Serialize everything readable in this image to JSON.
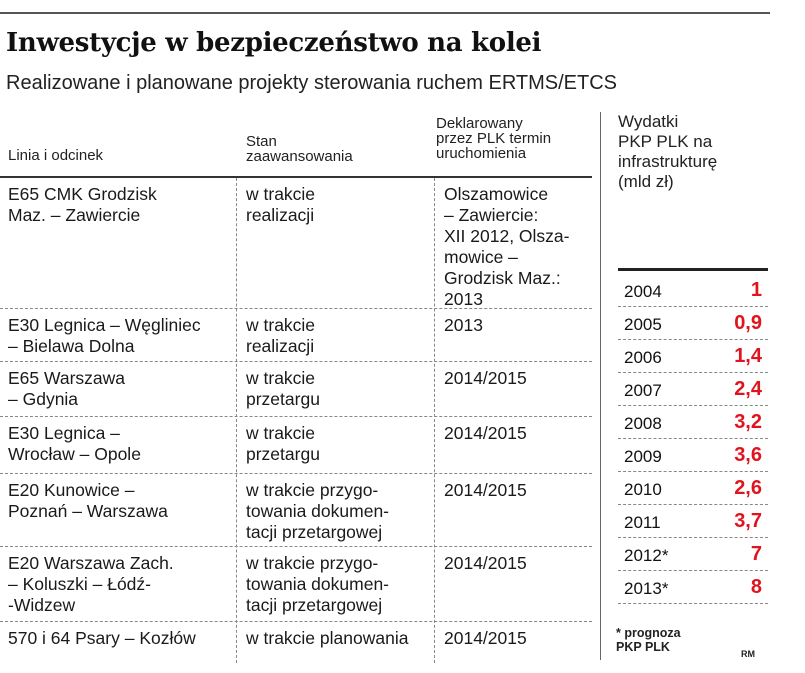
{
  "title": "Inwestycje w bezpieczeństwo na kolei",
  "subtitle": "Realizowane i planowane projekty sterowania ruchem ERTMS/ETCS",
  "table": {
    "headers": {
      "col1": "Linia i odcinek",
      "col2": "Stan\nzaawansowania",
      "col3": "Deklarowany\nprzez PLK termin\nuruchomienia"
    },
    "rows": [
      {
        "line": "E65 CMK Grodzisk\nMaz. – Zawiercie",
        "status": "w trakcie\nrealizacji",
        "date": "Olszamowice\n– Zawiercie:\nXII 2012, Olsza-\nmowice –\nGrodzisk Maz.:\n2013"
      },
      {
        "line": "E30 Legnica – Węgliniec\n– Bielawa Dolna",
        "status": "w trakcie\nrealizacji",
        "date": "2013"
      },
      {
        "line": "E65 Warszawa\n– Gdynia",
        "status": "w trakcie\nprzetargu",
        "date": "2014/2015"
      },
      {
        "line": "E30 Legnica –\nWrocław – Opole",
        "status": "w trakcie\nprzetargu",
        "date": "2014/2015"
      },
      {
        "line": "E20 Kunowice –\nPoznań – Warszawa",
        "status": "w trakcie przygo-\ntowania dokumen-\ntacji przetargowej",
        "date": "2014/2015"
      },
      {
        "line": "E20 Warszawa Zach.\n– Koluszki – Łódź-\n-Widzew",
        "status": "w trakcie przygo-\ntowania dokumen-\ntacji przetargowej",
        "date": "2014/2015"
      },
      {
        "line": "570 i 64 Psary – Kozłów",
        "status": "w trakcie planowania",
        "date": "2014/2015"
      }
    ]
  },
  "spending": {
    "header": "Wydatki\nPKP PLK na\ninfrastrukturę\n(mld zł)",
    "rows": [
      {
        "year": "2004",
        "value": "1"
      },
      {
        "year": "2005",
        "value": "0,9"
      },
      {
        "year": "2006",
        "value": "1,4"
      },
      {
        "year": "2007",
        "value": "2,4"
      },
      {
        "year": "2008",
        "value": "3,2"
      },
      {
        "year": "2009",
        "value": "3,6"
      },
      {
        "year": "2010",
        "value": "2,6"
      },
      {
        "year": "2011",
        "value": "3,7"
      },
      {
        "year": "2012*",
        "value": "7"
      },
      {
        "year": "2013*",
        "value": "8"
      }
    ],
    "footnote": "* prognoza\nPKP PLK",
    "author": "RM"
  },
  "colors": {
    "accent_red": "#e0141e",
    "text": "#111111",
    "rule": "#555555"
  }
}
